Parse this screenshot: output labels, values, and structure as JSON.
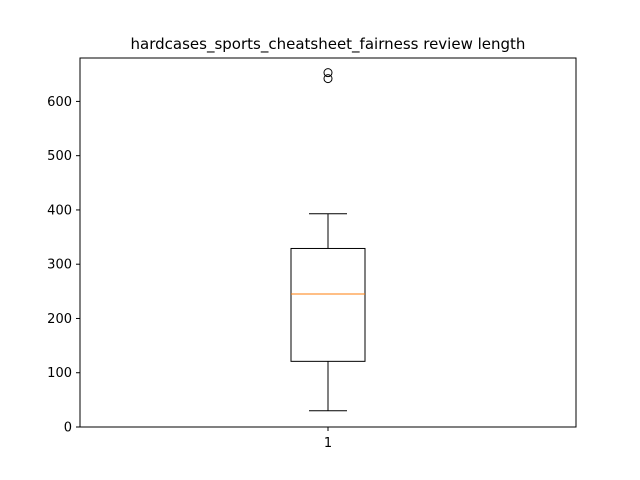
{
  "chart_data": {
    "type": "box",
    "title": "hardcases_sports_cheatsheet_fairness review length",
    "xlabel": "",
    "ylabel": "",
    "categories": [
      "1"
    ],
    "ylim": [
      0,
      680
    ],
    "yticks": [
      0,
      100,
      200,
      300,
      400,
      500,
      600
    ],
    "grid": false,
    "boxes": [
      {
        "category": "1",
        "whisker_low": 30,
        "q1": 121,
        "median": 245,
        "q3": 329,
        "whisker_high": 393,
        "outliers": [
          642,
          653
        ]
      }
    ],
    "colors": {
      "box": "#000000",
      "median": "#ff7f0e",
      "outlier": "#000000"
    }
  }
}
